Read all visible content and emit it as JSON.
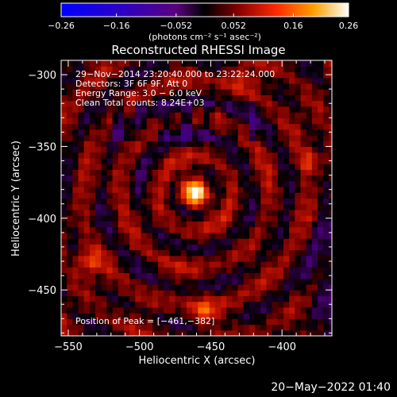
{
  "chart_data": {
    "type": "heatmap",
    "title": "Reconstructed RHESSI Image",
    "xlabel": "Heliocentric X (arcsec)",
    "ylabel": "Heliocentric Y (arcsec)",
    "xlim": [
      -555,
      -365
    ],
    "ylim": [
      -482,
      -290
    ],
    "x_ticks": [
      -550,
      -500,
      -450,
      -400
    ],
    "y_ticks": [
      -300,
      -350,
      -400,
      -450
    ],
    "x_tick_labels": [
      "−550",
      "−500",
      "−450",
      "−400"
    ],
    "y_tick_labels": [
      "−300",
      "−350",
      "−400",
      "−450"
    ],
    "colorbar": {
      "range": [
        -0.26,
        0.26
      ],
      "ticks": [
        -0.26,
        -0.16,
        -0.052,
        0.052,
        0.16,
        0.26
      ],
      "tick_labels": [
        "−0.26",
        "−0.16",
        "−0.052",
        "0.052",
        "0.16",
        "0.26"
      ],
      "unit_label": "(photons cm⁻² s⁻¹ asec⁻²)"
    },
    "annotations": [
      "29−Nov−2014 23:20:40.000 to 23:22:24.000",
      "Detectors: 3F 6F 9F, Att 0",
      "Energy Range: 3.0 − 6.0 keV",
      "Clean     Total counts: 8.24E+03"
    ],
    "peak_annotation": "Position of Peak = [−461,−382]",
    "peak": {
      "x": -461,
      "y": -382,
      "value": 0.26
    },
    "sources": [
      {
        "x": -461,
        "y": -382,
        "amp": 0.22,
        "sigma": 7
      },
      {
        "x": -536,
        "y": -430,
        "amp": 0.09,
        "sigma": 6
      },
      {
        "x": -455,
        "y": -465,
        "amp": 0.1,
        "sigma": 6
      },
      {
        "x": -380,
        "y": -360,
        "amp": 0.08,
        "sigma": 6
      },
      {
        "x": -430,
        "y": -300,
        "amp": 0.06,
        "sigma": 8
      }
    ],
    "grid": false
  },
  "footer": {
    "date": "20−May−2022 01:40"
  }
}
